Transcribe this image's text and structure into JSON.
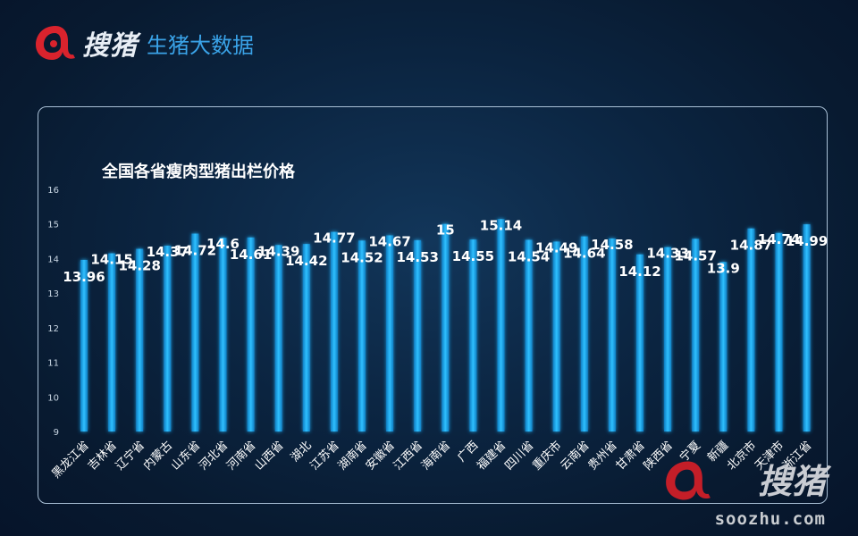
{
  "brand": {
    "site_name": "搜猪",
    "subtitle": "生猪大数据"
  },
  "watermark": {
    "name": "搜猪",
    "url": "soozhu.com"
  },
  "colors": {
    "bar": "#1aa9ec",
    "bar_glow": "#40c4ff",
    "brand_red": "#d9232d",
    "subtitle_blue": "#3aa3e8"
  },
  "chart_data": {
    "type": "bar",
    "title": "全国各省瘦肉型猪出栏价格",
    "xlabel": "",
    "ylabel": "",
    "ylim": [
      9,
      16
    ],
    "yticks": [
      9,
      10,
      11,
      12,
      13,
      14,
      15,
      16
    ],
    "grid": false,
    "categories": [
      "黑龙江省",
      "吉林省",
      "辽宁省",
      "内蒙古",
      "山东省",
      "河北省",
      "河南省",
      "山西省",
      "湖北",
      "江苏省",
      "湖南省",
      "安徽省",
      "江西省",
      "海南省",
      "广西",
      "福建省",
      "四川省",
      "重庆市",
      "云南省",
      "贵州省",
      "甘肃省",
      "陕西省",
      "宁夏",
      "新疆",
      "北京市",
      "天津市",
      "浙江省"
    ],
    "values": [
      13.96,
      14.15,
      14.28,
      14.37,
      14.72,
      14.6,
      14.61,
      14.39,
      14.42,
      14.77,
      14.52,
      14.67,
      14.53,
      15,
      14.55,
      15.14,
      14.54,
      14.49,
      14.64,
      14.58,
      14.12,
      14.33,
      14.57,
      13.9,
      14.87,
      14.74,
      14.99
    ],
    "value_labels": [
      "13.96",
      "14.15",
      "14.28",
      "14.37",
      "14.72",
      "14.6",
      "14.61",
      "14.39",
      "14.42",
      "14.77",
      "14.52",
      "14.67",
      "14.53",
      "15",
      "14.55",
      "15.14",
      "14.54",
      "14.49",
      "14.64",
      "14.58",
      "14.12",
      "14.33",
      "14.57",
      "13.9",
      "14.87",
      "14.74",
      "14.99"
    ]
  }
}
